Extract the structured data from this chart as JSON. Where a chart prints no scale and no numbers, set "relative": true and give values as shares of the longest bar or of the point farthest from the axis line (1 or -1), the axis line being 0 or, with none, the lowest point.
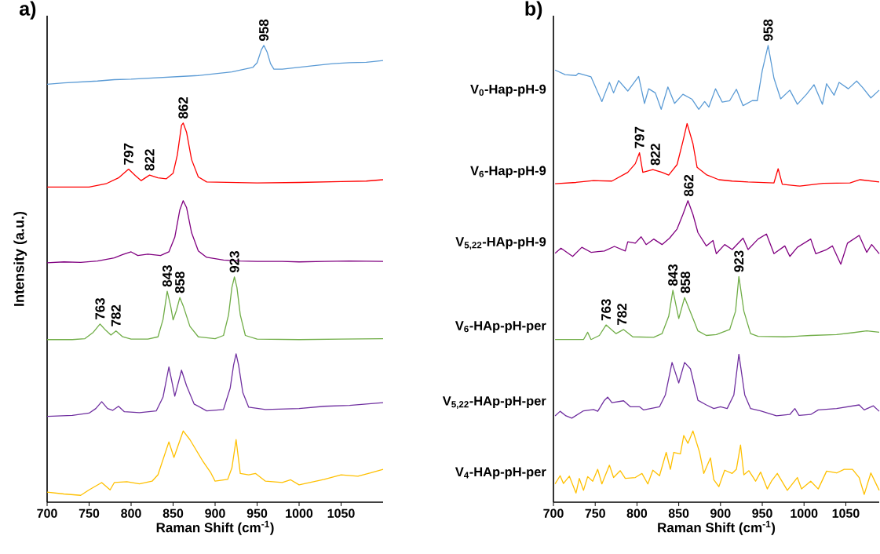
{
  "chart_data": [
    {
      "type": "line",
      "title": "a)",
      "xlabel": "Raman Shift (cm$^{-1}$)",
      "ylabel": "Intensity (a.u.)",
      "relative": true,
      "xlim": [
        700,
        1100
      ],
      "xticks": [
        700,
        750,
        800,
        850,
        900,
        950,
        1000,
        1050
      ],
      "annotations": [
        {
          "text": "958",
          "x": 958,
          "y": 1.0
        },
        {
          "text": "797",
          "x": 797,
          "y": 0.729
        },
        {
          "text": "822",
          "x": 822,
          "y": 0.716
        },
        {
          "text": "862",
          "x": 862,
          "y": 0.83
        },
        {
          "text": "923",
          "x": 923,
          "y": 0.493
        },
        {
          "text": "843",
          "x": 843,
          "y": 0.462
        },
        {
          "text": "858",
          "x": 858,
          "y": 0.448
        },
        {
          "text": "763",
          "x": 763,
          "y": 0.39
        },
        {
          "text": "782",
          "x": 782,
          "y": 0.375
        }
      ],
      "series": [
        {
          "color": "#5b9bd5",
          "x": [
            700,
            720,
            740,
            760,
            780,
            800,
            820,
            840,
            860,
            880,
            900,
            920,
            935,
            945,
            950,
            955,
            958,
            962,
            966,
            970,
            980,
            1000,
            1020,
            1040,
            1060,
            1080,
            1100
          ],
          "values": [
            0.915,
            0.918,
            0.92,
            0.922,
            0.925,
            0.926,
            0.928,
            0.93,
            0.932,
            0.934,
            0.938,
            0.942,
            0.948,
            0.952,
            0.962,
            0.99,
            1.0,
            0.985,
            0.96,
            0.948,
            0.948,
            0.952,
            0.956,
            0.96,
            0.962,
            0.963,
            0.967
          ]
        },
        {
          "color": "#ff0000",
          "x": [
            700,
            750,
            770,
            785,
            797,
            805,
            812,
            822,
            832,
            842,
            850,
            855,
            860,
            862,
            866,
            872,
            880,
            890,
            950,
            1000,
            1050,
            1080,
            1100
          ],
          "values": [
            0.69,
            0.69,
            0.697,
            0.71,
            0.729,
            0.715,
            0.704,
            0.716,
            0.71,
            0.708,
            0.72,
            0.76,
            0.825,
            0.83,
            0.81,
            0.75,
            0.712,
            0.701,
            0.699,
            0.7,
            0.702,
            0.703,
            0.706
          ]
        },
        {
          "color": "#800080",
          "x": [
            700,
            720,
            740,
            760,
            780,
            790,
            800,
            808,
            820,
            835,
            845,
            852,
            858,
            862,
            866,
            872,
            880,
            890,
            910,
            930,
            950,
            980,
            1000,
            1030,
            1060,
            1100
          ],
          "values": [
            0.524,
            0.526,
            0.525,
            0.528,
            0.535,
            0.542,
            0.548,
            0.54,
            0.543,
            0.54,
            0.548,
            0.58,
            0.64,
            0.66,
            0.645,
            0.59,
            0.55,
            0.536,
            0.53,
            0.528,
            0.527,
            0.527,
            0.526,
            0.527,
            0.528,
            0.527
          ]
        },
        {
          "color": "#70ad47",
          "x": [
            700,
            730,
            745,
            755,
            763,
            770,
            776,
            782,
            790,
            800,
            820,
            832,
            838,
            843,
            847,
            850,
            854,
            858,
            862,
            870,
            880,
            900,
            910,
            916,
            920,
            923,
            926,
            930,
            936,
            950,
            1000,
            1050,
            1100
          ],
          "values": [
            0.356,
            0.356,
            0.358,
            0.372,
            0.39,
            0.376,
            0.366,
            0.375,
            0.362,
            0.357,
            0.357,
            0.362,
            0.4,
            0.462,
            0.43,
            0.399,
            0.42,
            0.448,
            0.43,
            0.385,
            0.362,
            0.358,
            0.365,
            0.41,
            0.47,
            0.493,
            0.47,
            0.41,
            0.365,
            0.357,
            0.356,
            0.357,
            0.358
          ]
        },
        {
          "color": "#7030a0",
          "x": [
            700,
            730,
            750,
            758,
            765,
            772,
            778,
            785,
            792,
            810,
            830,
            838,
            845,
            849,
            852,
            856,
            860,
            866,
            875,
            890,
            910,
            918,
            922,
            925,
            928,
            933,
            940,
            960,
            1000,
            1030,
            1060,
            1080,
            1100
          ],
          "values": [
            0.188,
            0.19,
            0.195,
            0.205,
            0.22,
            0.205,
            0.201,
            0.21,
            0.198,
            0.196,
            0.2,
            0.23,
            0.296,
            0.26,
            0.232,
            0.26,
            0.289,
            0.255,
            0.215,
            0.2,
            0.203,
            0.25,
            0.3,
            0.325,
            0.3,
            0.24,
            0.208,
            0.203,
            0.205,
            0.21,
            0.212,
            0.215,
            0.218
          ]
        },
        {
          "color": "#ffc000",
          "x": [
            700,
            720,
            740,
            750,
            765,
            775,
            780,
            795,
            810,
            825,
            832,
            845,
            851,
            862,
            870,
            885,
            895,
            900,
            915,
            920,
            925,
            930,
            940,
            948,
            960,
            980,
            990,
            1000,
            1030,
            1050,
            1070,
            1085,
            1100
          ],
          "values": [
            0.022,
            0.018,
            0.015,
            0.027,
            0.043,
            0.027,
            0.043,
            0.045,
            0.04,
            0.046,
            0.06,
            0.132,
            0.098,
            0.156,
            0.137,
            0.091,
            0.064,
            0.046,
            0.05,
            0.075,
            0.137,
            0.063,
            0.06,
            0.063,
            0.046,
            0.043,
            0.049,
            0.038,
            0.05,
            0.06,
            0.057,
            0.064,
            0.072
          ]
        }
      ]
    },
    {
      "type": "line",
      "title": "b)",
      "xlabel": "Raman Shift (cm$^{-1}$)",
      "relative": true,
      "xlim": [
        700,
        1090
      ],
      "xticks": [
        700,
        750,
        800,
        850,
        900,
        950,
        1000,
        1050
      ],
      "annotations": [
        {
          "text": "958",
          "x": 957,
          "y": 1.0
        },
        {
          "text": "797",
          "x": 803,
          "y": 0.765
        },
        {
          "text": "822",
          "x": 822,
          "y": 0.728
        },
        {
          "text": "862",
          "x": 862,
          "y": 0.66
        },
        {
          "text": "923",
          "x": 922,
          "y": 0.494
        },
        {
          "text": "843",
          "x": 843,
          "y": 0.464
        },
        {
          "text": "858",
          "x": 858,
          "y": 0.448
        },
        {
          "text": "763",
          "x": 763,
          "y": 0.388
        },
        {
          "text": "782",
          "x": 782,
          "y": 0.378
        }
      ],
      "series": [
        {
          "name": "V$_{0}$-Hap-pH-9",
          "color": "#5b9bd5",
          "x": [
            702,
            714,
            727,
            730,
            745,
            758,
            762,
            767,
            772,
            778,
            789,
            802,
            809,
            814,
            822,
            829,
            837,
            845,
            855,
            866,
            874,
            881,
            886,
            894,
            902,
            911,
            919,
            927,
            938,
            944,
            950,
            957,
            964,
            972,
            983,
            992,
            1003,
            1012,
            1022,
            1027,
            1036,
            1042,
            1053,
            1063,
            1070,
            1080,
            1090
          ],
          "values": [
            0.946,
            0.936,
            0.934,
            0.939,
            0.931,
            0.877,
            0.896,
            0.919,
            0.896,
            0.923,
            0.9,
            0.932,
            0.873,
            0.905,
            0.896,
            0.86,
            0.909,
            0.873,
            0.893,
            0.882,
            0.86,
            0.877,
            0.865,
            0.905,
            0.876,
            0.879,
            0.904,
            0.868,
            0.879,
            0.879,
            0.945,
            1.0,
            0.928,
            0.883,
            0.902,
            0.871,
            0.893,
            0.914,
            0.871,
            0.916,
            0.891,
            0.919,
            0.905,
            0.922,
            0.908,
            0.885,
            0.902
          ]
        },
        {
          "name": "V$_{6}$-Hap-pH-9",
          "color": "#ff0000",
          "x": [
            702,
            727,
            748,
            770,
            789,
            798,
            803,
            807,
            819,
            830,
            838,
            848,
            855,
            860,
            867,
            872,
            883,
            898,
            914,
            933,
            964,
            969,
            974,
            995,
            1023,
            1055,
            1067,
            1090
          ],
          "values": [
            0.697,
            0.7,
            0.704,
            0.703,
            0.722,
            0.741,
            0.765,
            0.722,
            0.728,
            0.722,
            0.716,
            0.739,
            0.79,
            0.829,
            0.785,
            0.733,
            0.717,
            0.706,
            0.703,
            0.701,
            0.699,
            0.73,
            0.696,
            0.692,
            0.698,
            0.699,
            0.706,
            0.701
          ]
        },
        {
          "name": "V$_{5,22}$-HAp-pH-9",
          "color": "#800080",
          "x": [
            702,
            709,
            723,
            734,
            745,
            761,
            773,
            786,
            789,
            798,
            805,
            811,
            820,
            830,
            839,
            848,
            855,
            861,
            867,
            873,
            883,
            891,
            895,
            905,
            914,
            927,
            933,
            945,
            955,
            964,
            977,
            983,
            992,
            1008,
            1014,
            1027,
            1034,
            1044,
            1052,
            1066,
            1075,
            1081,
            1090
          ],
          "values": [
            0.545,
            0.556,
            0.538,
            0.558,
            0.547,
            0.55,
            0.56,
            0.55,
            0.57,
            0.567,
            0.581,
            0.564,
            0.576,
            0.564,
            0.578,
            0.598,
            0.63,
            0.66,
            0.63,
            0.59,
            0.561,
            0.573,
            0.544,
            0.564,
            0.553,
            0.578,
            0.553,
            0.576,
            0.587,
            0.544,
            0.561,
            0.538,
            0.558,
            0.576,
            0.544,
            0.553,
            0.561,
            0.521,
            0.567,
            0.584,
            0.547,
            0.564,
            0.544
          ]
        },
        {
          "name": "V$_{6}$-HAp-pH-per",
          "color": "#70ad47",
          "x": [
            702,
            720,
            736,
            741,
            745,
            755,
            763,
            775,
            784,
            795,
            820,
            830,
            838,
            843,
            850,
            857,
            866,
            873,
            883,
            895,
            911,
            918,
            922,
            928,
            936,
            945,
            977,
            1008,
            1039,
            1058,
            1075,
            1090
          ],
          "values": [
            0.356,
            0.356,
            0.356,
            0.372,
            0.356,
            0.365,
            0.388,
            0.369,
            0.378,
            0.362,
            0.361,
            0.369,
            0.407,
            0.464,
            0.402,
            0.448,
            0.407,
            0.375,
            0.365,
            0.367,
            0.378,
            0.418,
            0.494,
            0.418,
            0.369,
            0.363,
            0.362,
            0.365,
            0.367,
            0.371,
            0.375,
            0.372
          ]
        },
        {
          "name": "V$_{5,22}$-HAp-pH-per",
          "color": "#7030a0",
          "x": [
            702,
            708,
            715,
            722,
            736,
            748,
            753,
            761,
            765,
            770,
            784,
            792,
            803,
            808,
            827,
            834,
            842,
            850,
            857,
            864,
            873,
            883,
            892,
            900,
            908,
            916,
            922,
            929,
            936,
            948,
            967,
            983,
            989,
            994,
            1008,
            1017,
            1039,
            1066,
            1072,
            1083,
            1090
          ],
          "values": [
            0.189,
            0.199,
            0.189,
            0.184,
            0.2,
            0.203,
            0.199,
            0.223,
            0.23,
            0.218,
            0.222,
            0.209,
            0.209,
            0.202,
            0.209,
            0.235,
            0.306,
            0.261,
            0.306,
            0.292,
            0.223,
            0.213,
            0.205,
            0.209,
            0.205,
            0.235,
            0.324,
            0.235,
            0.205,
            0.2,
            0.189,
            0.192,
            0.205,
            0.19,
            0.192,
            0.202,
            0.205,
            0.213,
            0.202,
            0.211,
            0.199
          ]
        },
        {
          "name": "V$_{4}$-HAp-pH-per",
          "color": "#ffc000",
          "x": [
            702,
            708,
            712,
            719,
            727,
            731,
            736,
            741,
            747,
            753,
            758,
            767,
            772,
            780,
            786,
            798,
            806,
            813,
            819,
            827,
            835,
            840,
            844,
            852,
            856,
            861,
            867,
            875,
            880,
            888,
            892,
            898,
            905,
            914,
            919,
            924,
            928,
            934,
            942,
            948,
            956,
            961,
            968,
            980,
            992,
            997,
            1008,
            1017,
            1027,
            1039,
            1048,
            1058,
            1066,
            1072,
            1080,
            1090
          ],
          "values": [
            0.04,
            0.058,
            0.041,
            0.057,
            0.02,
            0.052,
            0.026,
            0.056,
            0.046,
            0.072,
            0.04,
            0.081,
            0.054,
            0.069,
            0.052,
            0.054,
            0.063,
            0.04,
            0.07,
            0.058,
            0.109,
            0.072,
            0.109,
            0.106,
            0.146,
            0.129,
            0.156,
            0.109,
            0.063,
            0.097,
            0.049,
            0.034,
            0.07,
            0.063,
            0.072,
            0.125,
            0.06,
            0.069,
            0.046,
            0.066,
            0.029,
            0.046,
            0.063,
            0.026,
            0.054,
            0.029,
            0.046,
            0.029,
            0.068,
            0.064,
            0.072,
            0.072,
            0.054,
            0.017,
            0.064,
            0.026
          ]
        }
      ]
    }
  ]
}
